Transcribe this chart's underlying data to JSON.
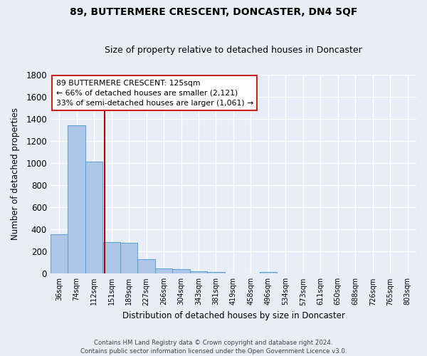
{
  "title": "89, BUTTERMERE CRESCENT, DONCASTER, DN4 5QF",
  "subtitle": "Size of property relative to detached houses in Doncaster",
  "xlabel": "Distribution of detached houses by size in Doncaster",
  "ylabel": "Number of detached properties",
  "footer_line1": "Contains HM Land Registry data © Crown copyright and database right 2024.",
  "footer_line2": "Contains public sector information licensed under the Open Government Licence v3.0.",
  "annotation_line1": "89 BUTTERMERE CRESCENT: 125sqm",
  "annotation_line2": "← 66% of detached houses are smaller (2,121)",
  "annotation_line3": "33% of semi-detached houses are larger (1,061) →",
  "bar_categories": [
    "36sqm",
    "74sqm",
    "112sqm",
    "151sqm",
    "189sqm",
    "227sqm",
    "266sqm",
    "304sqm",
    "343sqm",
    "381sqm",
    "419sqm",
    "458sqm",
    "496sqm",
    "534sqm",
    "573sqm",
    "611sqm",
    "650sqm",
    "688sqm",
    "726sqm",
    "765sqm",
    "803sqm"
  ],
  "bar_values": [
    355,
    1340,
    1010,
    285,
    280,
    130,
    45,
    42,
    22,
    18,
    0,
    0,
    18,
    0,
    0,
    0,
    0,
    0,
    0,
    0,
    0
  ],
  "bar_color": "#aec6e8",
  "bar_edge_color": "#5a9fd4",
  "bg_color": "#e8eef8",
  "grid_color": "#ffffff",
  "vline_x": 2.6,
  "vline_color": "#aa0000",
  "ylim": [
    0,
    1800
  ],
  "yticks": [
    0,
    200,
    400,
    600,
    800,
    1000,
    1200,
    1400,
    1600,
    1800
  ],
  "annotation_box_facecolor": "#ffffff",
  "annotation_box_edgecolor": "#cc2222",
  "title_fontsize": 10,
  "subtitle_fontsize": 9
}
